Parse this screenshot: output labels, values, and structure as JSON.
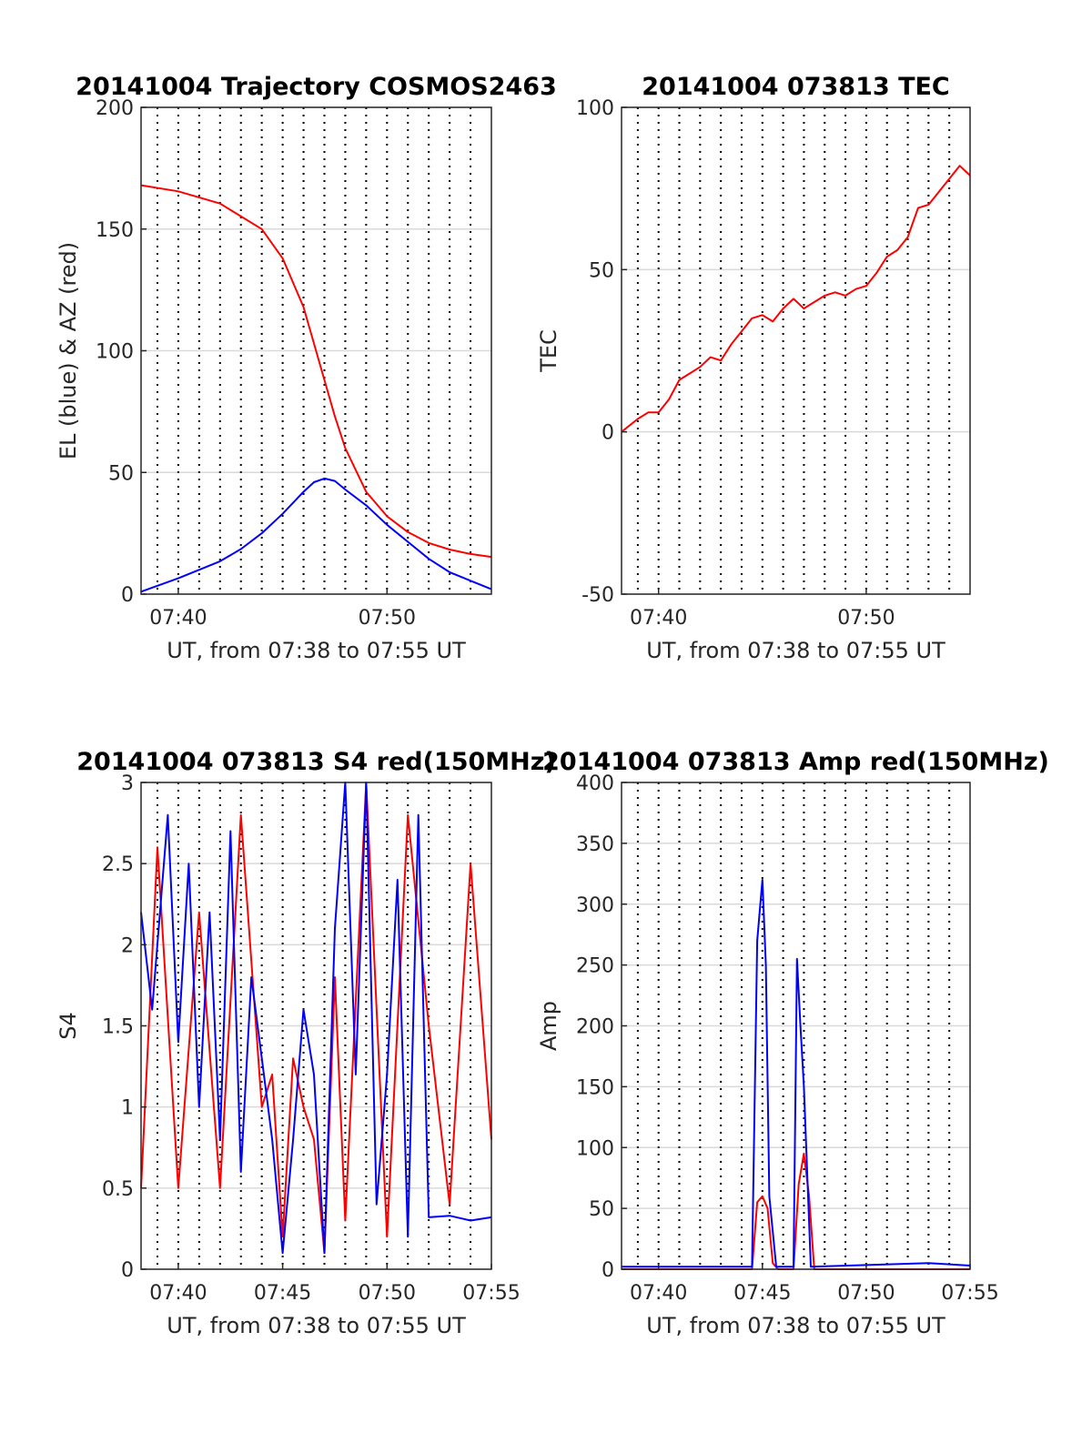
{
  "colors": {
    "el": "#0000ff",
    "az": "#ff0000",
    "grid": "#d9d9d9",
    "axis": "#262626",
    "vline": "#000000"
  },
  "chart_data": [
    {
      "type": "line",
      "title": "20141004 Trajectory COSMOS2463",
      "xlabel": "UT, from 07:38 to 07:55 UT",
      "ylabel": "EL (blue) & AZ (red)",
      "xlim": [
        "07:38:13",
        "07:55:00"
      ],
      "ylim": [
        0,
        200
      ],
      "xticks": [
        "07:40",
        "07:50"
      ],
      "yticks": [
        0,
        50,
        100,
        150,
        200
      ],
      "grid": true,
      "series": [
        {
          "color": "#ff0000",
          "x": [
            "07:38:13",
            "07:40:00",
            "07:42:00",
            "07:44:00",
            "07:45:00",
            "07:46:00",
            "07:46:30",
            "07:47:00",
            "07:47:30",
            "07:48:00",
            "07:49:00",
            "07:50:00",
            "07:51:00",
            "07:52:00",
            "07:53:00",
            "07:54:00",
            "07:55:00"
          ],
          "y": [
            168,
            165.5,
            160.5,
            150,
            138,
            118,
            103,
            88,
            73,
            60,
            42,
            32,
            25.5,
            21,
            18.3,
            16.5,
            15.3
          ]
        },
        {
          "color": "#0000ff",
          "x": [
            "07:38:13",
            "07:40:00",
            "07:42:00",
            "07:43:00",
            "07:44:00",
            "07:45:00",
            "07:46:00",
            "07:46:30",
            "07:47:00",
            "07:47:30",
            "07:48:00",
            "07:49:00",
            "07:50:00",
            "07:51:00",
            "07:52:00",
            "07:53:00",
            "07:54:00",
            "07:55:00"
          ],
          "y": [
            1,
            6.5,
            13.5,
            18.5,
            25,
            33,
            42,
            46,
            47.5,
            46.5,
            43,
            36.5,
            28.5,
            21.5,
            14.5,
            9,
            5.5,
            2
          ]
        }
      ]
    },
    {
      "type": "line",
      "title": "20141004 073813 TEC",
      "xlabel": "UT, from 07:38 to 07:55 UT",
      "ylabel": "TEC",
      "xlim": [
        "07:38:13",
        "07:55:00"
      ],
      "ylim": [
        -50,
        100
      ],
      "xticks": [
        "07:40",
        "07:50"
      ],
      "yticks": [
        -50,
        0,
        50,
        100
      ],
      "grid": true,
      "series": [
        {
          "color": "#ff0000",
          "x": [
            "07:38:13",
            "07:39:00",
            "07:39:30",
            "07:40:00",
            "07:40:30",
            "07:41:00",
            "07:41:30",
            "07:42:00",
            "07:42:30",
            "07:43:00",
            "07:43:30",
            "07:44:00",
            "07:44:30",
            "07:45:00",
            "07:45:30",
            "07:46:00",
            "07:46:30",
            "07:47:00",
            "07:47:30",
            "07:48:00",
            "07:48:30",
            "07:49:00",
            "07:49:30",
            "07:50:00",
            "07:50:30",
            "07:51:00",
            "07:51:30",
            "07:52:00",
            "07:52:30",
            "07:53:00",
            "07:53:30",
            "07:54:00",
            "07:54:30",
            "07:55:00"
          ],
          "y": [
            0,
            4,
            6,
            6,
            10,
            16,
            18,
            20,
            23,
            22,
            27,
            31,
            35,
            36,
            34,
            38,
            41,
            38,
            40,
            42,
            43,
            42,
            44,
            45,
            49,
            54,
            56,
            60,
            69,
            70,
            74,
            78,
            82,
            79
          ]
        }
      ]
    },
    {
      "type": "line",
      "title": "20141004 073813 S4 red(150MHz)",
      "xlabel": "UT, from 07:38 to 07:55 UT",
      "ylabel": "S4",
      "xlim": [
        "07:38:13",
        "07:55:00"
      ],
      "ylim": [
        0,
        3
      ],
      "xticks": [
        "07:40",
        "07:45",
        "07:50",
        "07:55"
      ],
      "yticks": [
        0,
        0.5,
        1,
        1.5,
        2,
        2.5,
        3
      ],
      "grid": true,
      "series": [
        {
          "color": "#ff0000",
          "x": [
            "07:38:13",
            "07:39:00",
            "07:40:00",
            "07:41:00",
            "07:42:00",
            "07:43:00",
            "07:44:00",
            "07:44:30",
            "07:45:00",
            "07:45:30",
            "07:46:00",
            "07:46:30",
            "07:47:00",
            "07:47:30",
            "07:48:00",
            "07:49:00",
            "07:50:00",
            "07:51:00",
            "07:52:00",
            "07:53:00",
            "07:54:00",
            "07:55:00"
          ],
          "y": [
            0.5,
            2.6,
            0.5,
            2.2,
            0.5,
            2.8,
            1.0,
            1.2,
            0.2,
            1.3,
            1.0,
            0.8,
            0.1,
            1.8,
            0.3,
            3.0,
            0.2,
            2.8,
            1.5,
            0.4,
            2.5,
            0.8
          ]
        },
        {
          "color": "#0000ff",
          "x": [
            "07:38:13",
            "07:38:45",
            "07:39:30",
            "07:40:00",
            "07:40:30",
            "07:41:00",
            "07:41:30",
            "07:42:00",
            "07:42:30",
            "07:43:00",
            "07:43:30",
            "07:44:00",
            "07:44:30",
            "07:45:00",
            "07:45:30",
            "07:46:00",
            "07:46:30",
            "07:47:00",
            "07:47:30",
            "07:48:00",
            "07:48:30",
            "07:49:00",
            "07:49:30",
            "07:50:00",
            "07:50:30",
            "07:51:00",
            "07:51:30",
            "07:52:00",
            "07:53:00",
            "07:54:00",
            "07:55:00"
          ],
          "y": [
            2.2,
            1.6,
            2.8,
            1.4,
            2.5,
            1.0,
            2.2,
            0.8,
            2.7,
            0.6,
            1.8,
            1.3,
            0.8,
            0.1,
            0.8,
            1.6,
            1.2,
            0.1,
            2.1,
            3.0,
            1.2,
            3.0,
            0.4,
            1.2,
            2.4,
            0.2,
            2.8,
            0.32,
            0.33,
            0.3,
            0.32
          ]
        }
      ]
    },
    {
      "type": "line",
      "title": "20141004 073813 Amp red(150MHz)",
      "xlabel": "UT, from 07:38 to 07:55 UT",
      "ylabel": "Amp",
      "xlim": [
        "07:38:13",
        "07:55:00"
      ],
      "ylim": [
        0,
        400
      ],
      "xticks": [
        "07:40",
        "07:45",
        "07:50",
        "07:55"
      ],
      "yticks": [
        0,
        50,
        100,
        150,
        200,
        250,
        300,
        350,
        400
      ],
      "grid": true,
      "series": [
        {
          "color": "#ff0000",
          "x": [
            "07:38:13",
            "07:44:30",
            "07:44:45",
            "07:45:00",
            "07:45:15",
            "07:45:30",
            "07:45:45",
            "07:46:30",
            "07:46:45",
            "07:47:00",
            "07:47:15",
            "07:47:30",
            "07:55:00"
          ],
          "y": [
            0,
            0,
            55,
            60,
            50,
            5,
            0,
            0,
            70,
            95,
            60,
            0,
            0
          ]
        },
        {
          "color": "#0000ff",
          "x": [
            "07:38:13",
            "07:44:30",
            "07:44:45",
            "07:45:00",
            "07:45:10",
            "07:45:20",
            "07:45:40",
            "07:46:30",
            "07:46:40",
            "07:46:50",
            "07:47:00",
            "07:47:20",
            "07:53:00",
            "07:55:00"
          ],
          "y": [
            2,
            2,
            270,
            320,
            250,
            60,
            2,
            2,
            255,
            200,
            150,
            2,
            5,
            3
          ]
        }
      ]
    }
  ]
}
